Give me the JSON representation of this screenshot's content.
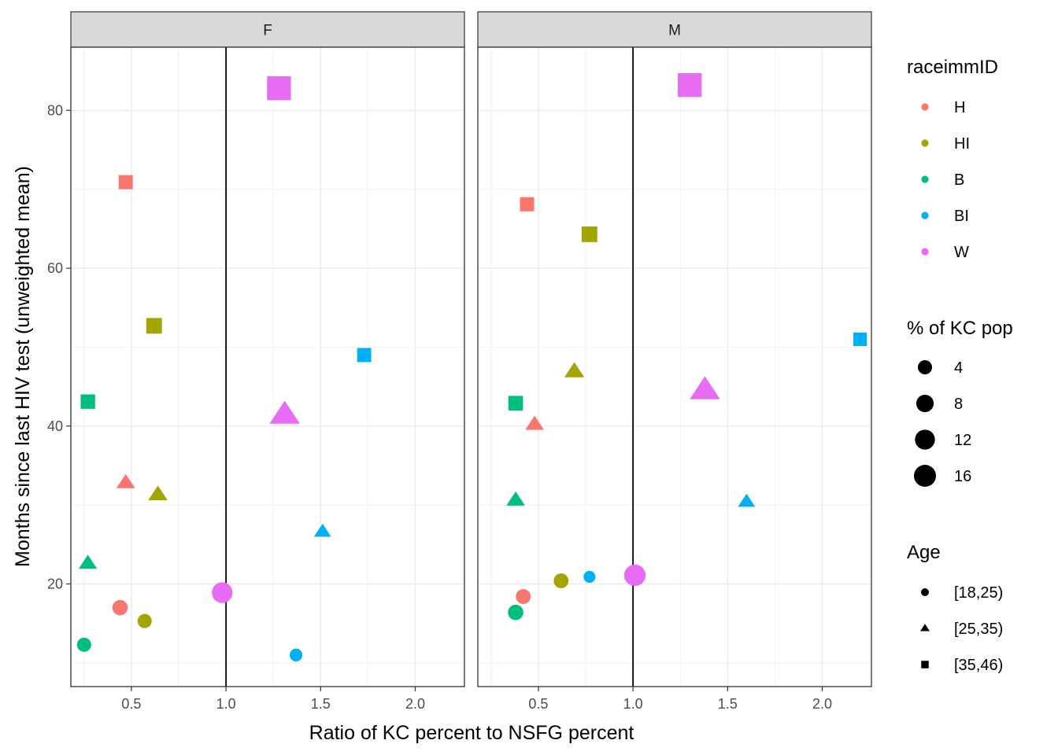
{
  "chart_data": {
    "type": "scatter",
    "xlabel": "Ratio of KC percent to NSFG percent",
    "ylabel": "Months since last HIV test (unweighted mean)",
    "xlim": [
      0.18,
      2.26
    ],
    "ylim": [
      7,
      88
    ],
    "x_ticks": [
      0.5,
      1.0,
      1.5,
      2.0
    ],
    "x_tick_labels": [
      "0.5",
      "1.0",
      "1.5",
      "2.0"
    ],
    "y_ticks": [
      20,
      40,
      60,
      80
    ],
    "y_tick_labels": [
      "20",
      "40",
      "60",
      "80"
    ],
    "reference_line_x": 1.0,
    "grid": true,
    "legend_placement": "right",
    "facets": [
      "F",
      "M"
    ],
    "color_legend": {
      "title": "raceimmID",
      "entries": [
        {
          "label": "H",
          "color": "#F8766D"
        },
        {
          "label": "HI",
          "color": "#A3A500"
        },
        {
          "label": "B",
          "color": "#00BF7D"
        },
        {
          "label": "BI",
          "color": "#00B0F6"
        },
        {
          "label": "W",
          "color": "#E76BF3"
        }
      ]
    },
    "size_legend": {
      "title": "% of KC pop",
      "entries": [
        {
          "label": "4",
          "value": 4
        },
        {
          "label": "8",
          "value": 8
        },
        {
          "label": "12",
          "value": 12
        },
        {
          "label": "16",
          "value": 16
        }
      ]
    },
    "shape_legend": {
      "title": "Age",
      "entries": [
        {
          "label": "[18,25)",
          "shape": "circle"
        },
        {
          "label": "[25,35)",
          "shape": "triangle"
        },
        {
          "label": "[35,46)",
          "shape": "square"
        }
      ]
    },
    "series": [
      {
        "panel": "F",
        "race": "H",
        "age": "[18,25)",
        "x": 0.44,
        "y": 17.0,
        "pct": 4.0
      },
      {
        "panel": "F",
        "race": "H",
        "age": "[25,35)",
        "x": 0.47,
        "y": 32.8,
        "pct": 4.0
      },
      {
        "panel": "F",
        "race": "H",
        "age": "[35,46)",
        "x": 0.47,
        "y": 70.9,
        "pct": 3.5
      },
      {
        "panel": "F",
        "race": "HI",
        "age": "[18,25)",
        "x": 0.57,
        "y": 15.3,
        "pct": 3.0
      },
      {
        "panel": "F",
        "race": "HI",
        "age": "[25,35)",
        "x": 0.64,
        "y": 31.3,
        "pct": 4.5
      },
      {
        "panel": "F",
        "race": "HI",
        "age": "[35,46)",
        "x": 0.62,
        "y": 52.7,
        "pct": 5.0
      },
      {
        "panel": "F",
        "race": "B",
        "age": "[18,25)",
        "x": 0.25,
        "y": 12.3,
        "pct": 3.0
      },
      {
        "panel": "F",
        "race": "B",
        "age": "[25,35)",
        "x": 0.27,
        "y": 22.6,
        "pct": 3.8
      },
      {
        "panel": "F",
        "race": "B",
        "age": "[35,46)",
        "x": 0.27,
        "y": 43.1,
        "pct": 3.8
      },
      {
        "panel": "F",
        "race": "BI",
        "age": "[18,25)",
        "x": 1.37,
        "y": 11.0,
        "pct": 2.0
      },
      {
        "panel": "F",
        "race": "BI",
        "age": "[25,35)",
        "x": 1.51,
        "y": 26.6,
        "pct": 3.0
      },
      {
        "panel": "F",
        "race": "BI",
        "age": "[35,46)",
        "x": 1.73,
        "y": 49.0,
        "pct": 3.5
      },
      {
        "panel": "F",
        "race": "W",
        "age": "[18,25)",
        "x": 0.98,
        "y": 18.9,
        "pct": 10.0
      },
      {
        "panel": "F",
        "race": "W",
        "age": "[25,35)",
        "x": 1.31,
        "y": 41.4,
        "pct": 17.0
      },
      {
        "panel": "F",
        "race": "W",
        "age": "[35,46)",
        "x": 1.28,
        "y": 82.8,
        "pct": 17.0
      },
      {
        "panel": "M",
        "race": "H",
        "age": "[18,25)",
        "x": 0.42,
        "y": 18.4,
        "pct": 3.5
      },
      {
        "panel": "M",
        "race": "H",
        "age": "[25,35)",
        "x": 0.48,
        "y": 40.2,
        "pct": 4.0
      },
      {
        "panel": "M",
        "race": "H",
        "age": "[35,46)",
        "x": 0.44,
        "y": 68.1,
        "pct": 3.5
      },
      {
        "panel": "M",
        "race": "HI",
        "age": "[18,25)",
        "x": 0.62,
        "y": 20.4,
        "pct": 3.5
      },
      {
        "panel": "M",
        "race": "HI",
        "age": "[25,35)",
        "x": 0.69,
        "y": 46.9,
        "pct": 5.0
      },
      {
        "panel": "M",
        "race": "HI",
        "age": "[35,46)",
        "x": 0.77,
        "y": 64.3,
        "pct": 5.0
      },
      {
        "panel": "M",
        "race": "B",
        "age": "[18,25)",
        "x": 0.38,
        "y": 16.4,
        "pct": 4.0
      },
      {
        "panel": "M",
        "race": "B",
        "age": "[25,35)",
        "x": 0.38,
        "y": 30.6,
        "pct": 4.0
      },
      {
        "panel": "M",
        "race": "B",
        "age": "[35,46)",
        "x": 0.38,
        "y": 42.9,
        "pct": 4.0
      },
      {
        "panel": "M",
        "race": "BI",
        "age": "[18,25)",
        "x": 0.77,
        "y": 20.9,
        "pct": 1.5
      },
      {
        "panel": "M",
        "race": "BI",
        "age": "[25,35)",
        "x": 1.6,
        "y": 30.4,
        "pct": 3.0
      },
      {
        "panel": "M",
        "race": "BI",
        "age": "[35,46)",
        "x": 2.2,
        "y": 51.0,
        "pct": 3.0
      },
      {
        "panel": "M",
        "race": "W",
        "age": "[18,25)",
        "x": 1.01,
        "y": 21.1,
        "pct": 11.0
      },
      {
        "panel": "M",
        "race": "W",
        "age": "[25,35)",
        "x": 1.38,
        "y": 44.5,
        "pct": 17.0
      },
      {
        "panel": "M",
        "race": "W",
        "age": "[35,46)",
        "x": 1.3,
        "y": 83.2,
        "pct": 17.0
      }
    ]
  }
}
